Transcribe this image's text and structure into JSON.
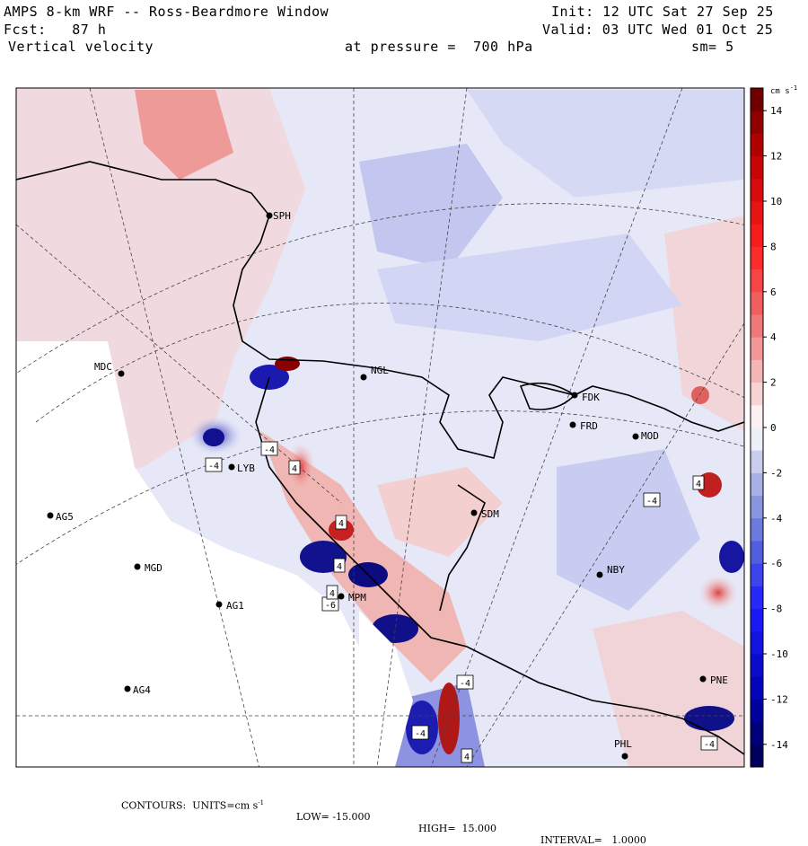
{
  "header": {
    "title": "AMPS 8-km WRF -- Ross-Beardmore Window",
    "init": "Init: 12 UTC Sat 27 Sep 25",
    "fcst": "Fcst:   87 h",
    "valid": "Valid: 03 UTC Wed 01 Oct 25",
    "field": "Vertical velocity",
    "pressure": "at pressure =  700 hPa",
    "smooth": "sm= 5"
  },
  "footer": {
    "contours": "CONTOURS:  UNITS=cm s",
    "units_exp": "-1",
    "low": "LOW= -15.000",
    "high": "HIGH=  15.000",
    "interval": "INTERVAL=   1.0000"
  },
  "colors": {
    "positive_max": "#7a0000",
    "positive_mid": "#ff2020",
    "positive_low": "#f6c9c6",
    "neutral": "#ffffff",
    "negative_low": "#cdd0f2",
    "negative_mid": "#2b2bd6",
    "negative_max": "#00007a"
  },
  "chart_data": {
    "type": "heatmap",
    "title": "Vertical velocity",
    "colorbar": {
      "unit_label": "cm s",
      "unit_exp": "-1",
      "range": [
        -15,
        15
      ],
      "interval": 1,
      "tick_labels": [
        "14",
        "12",
        "10",
        "8",
        "6",
        "4",
        "2",
        "0",
        "-2",
        "-4",
        "-6",
        "-8",
        "-10",
        "-12",
        "-14"
      ],
      "tick_values": [
        14,
        12,
        10,
        8,
        6,
        4,
        2,
        0,
        -2,
        -4,
        -6,
        -8,
        -10,
        -12,
        -14
      ]
    },
    "stations": [
      {
        "name": "SPH"
      },
      {
        "name": "MDC"
      },
      {
        "name": "NGL"
      },
      {
        "name": "FDK"
      },
      {
        "name": "FRD"
      },
      {
        "name": "MOD"
      },
      {
        "name": "SDM"
      },
      {
        "name": "AG5"
      },
      {
        "name": "MGD"
      },
      {
        "name": "AG1"
      },
      {
        "name": "NBY"
      },
      {
        "name": "AG4"
      },
      {
        "name": "PNE"
      },
      {
        "name": "PHL"
      },
      {
        "name": "MPM"
      },
      {
        "name": "LYB"
      }
    ],
    "extrema_labels": [
      "4",
      "-4",
      "4",
      "4",
      "-4",
      "-4",
      "4",
      "-6",
      "4",
      "-4",
      "-4",
      "4",
      "-4"
    ]
  }
}
